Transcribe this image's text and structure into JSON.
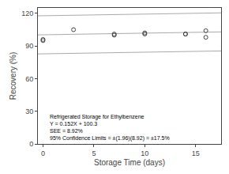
{
  "chart_data": {
    "type": "scatter",
    "xlabel": "Storage Time (days)",
    "ylabel": "Recovery (%)",
    "annotations": [
      "Refrigerated Storage for Ethylbenzene\nY = 0.152X + 100.3\nSEE = 8.92%\n95% Confidence Limits = ±(1.96)(8.92) = ±17.5%"
    ],
    "xlim": [
      -0.5,
      17.5
    ],
    "ylim": [
      0,
      125
    ],
    "xticks": [
      0,
      5,
      10,
      15
    ],
    "yticks": [
      0,
      30,
      60,
      90,
      120
    ],
    "grid": false,
    "series": [
      {
        "type": "line",
        "line_style": "solid",
        "color": "#aaaaaa",
        "x": [
          -0.5,
          17.5
        ],
        "values": [
          100.224,
          102.96
        ]
      },
      {
        "type": "line",
        "line_style": "solid",
        "color": "#aaaaaa",
        "x": [
          -0.5,
          17.5
        ],
        "values": [
          117.724,
          120.46
        ]
      },
      {
        "type": "line",
        "line_style": "solid",
        "color": "#aaaaaa",
        "x": [
          -0.5,
          17.5
        ],
        "values": [
          82.724,
          85.46
        ]
      },
      {
        "type": "scatter",
        "marker": "open circle",
        "color": "#444444",
        "x": [
          0,
          0,
          3,
          7,
          7,
          10,
          10,
          14,
          14,
          16,
          16
        ],
        "values": [
          95,
          96,
          105,
          100,
          101,
          101,
          102,
          101,
          101,
          98,
          104
        ]
      }
    ]
  }
}
